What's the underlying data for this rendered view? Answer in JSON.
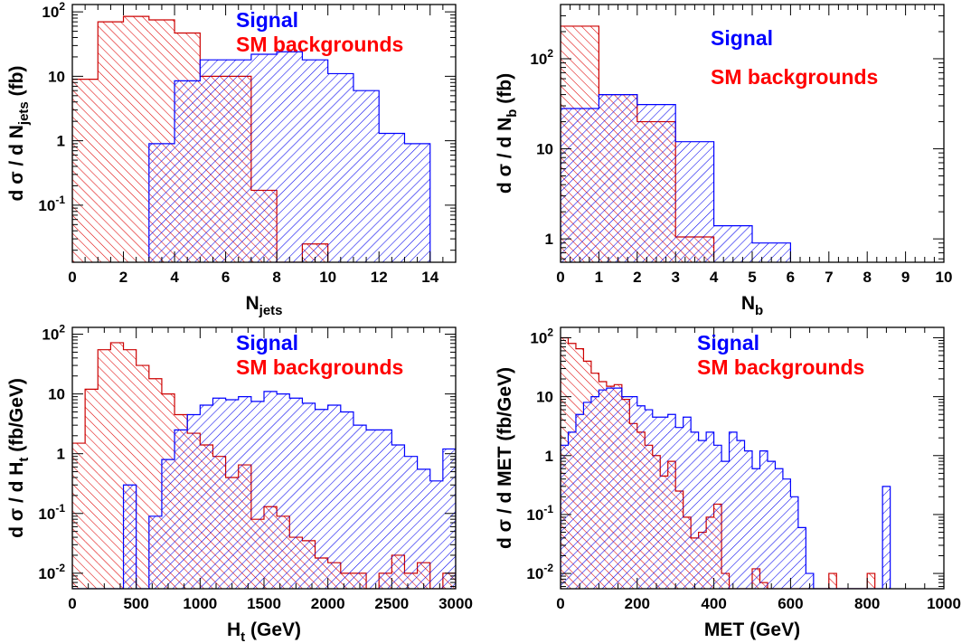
{
  "colors": {
    "signal": "#0000ff",
    "background": "#ff0000",
    "background_stroke": "#cc0000",
    "frame": "#000000",
    "panel_frame": "#000000"
  },
  "chart_data": [
    {
      "type": "bar",
      "histogram": true,
      "ylog": true,
      "xlabel": {
        "main": "N",
        "sub": "jets",
        "tail": ""
      },
      "ylabel": {
        "pre": "d σ / d N",
        "sub": "jets",
        "post": " (fb)"
      },
      "xlim": [
        0,
        15
      ],
      "ylim": [
        0.013,
        130
      ],
      "xticks": [
        0,
        2,
        4,
        6,
        8,
        10,
        12,
        14
      ],
      "xtick_labels": [
        "0",
        "2",
        "4",
        "6",
        "8",
        "10",
        "12",
        "14"
      ],
      "yticks": [
        {
          "value": 100,
          "base": "10",
          "exp": "2"
        },
        {
          "value": 10,
          "base": "10",
          "exp": ""
        },
        {
          "value": 1,
          "base": "1",
          "exp": ""
        },
        {
          "value": 0.1,
          "base": "10",
          "exp": "-1"
        }
      ],
      "legend": {
        "placement": "top-right",
        "signal": "Signal",
        "background": "SM backgrounds"
      },
      "series": [
        {
          "name": "SM backgrounds",
          "key": "background",
          "edges": [
            0,
            1,
            2,
            3,
            4,
            5,
            6,
            7,
            8,
            9,
            10
          ],
          "values": [
            9,
            70,
            85,
            75,
            47,
            10,
            10,
            0.17,
            0,
            0.025
          ]
        },
        {
          "name": "Signal",
          "key": "signal",
          "edges": [
            3,
            4,
            5,
            6,
            7,
            8,
            9,
            10,
            11,
            12,
            13,
            14
          ],
          "values": [
            0.9,
            8.5,
            18,
            18,
            22,
            24,
            18,
            11,
            6,
            1.3,
            0.9
          ]
        }
      ]
    },
    {
      "type": "bar",
      "histogram": true,
      "ylog": true,
      "xlabel": {
        "main": "N",
        "sub": "b",
        "tail": ""
      },
      "ylabel": {
        "pre": "d σ / d N",
        "sub": "b",
        "post": " (fb)"
      },
      "xlim": [
        0,
        10
      ],
      "ylim": [
        0.55,
        400
      ],
      "xticks": [
        0,
        1,
        2,
        3,
        4,
        5,
        6,
        7,
        8,
        9,
        10
      ],
      "xtick_labels": [
        "0",
        "1",
        "2",
        "3",
        "4",
        "5",
        "6",
        "7",
        "8",
        "9",
        "10"
      ],
      "yticks": [
        {
          "value": 100,
          "base": "10",
          "exp": "2"
        },
        {
          "value": 10,
          "base": "10",
          "exp": ""
        },
        {
          "value": 1,
          "base": "1",
          "exp": ""
        }
      ],
      "legend": {
        "placement": "top-right",
        "signal": "Signal",
        "background": "SM backgrounds"
      },
      "series": [
        {
          "name": "SM backgrounds",
          "key": "background",
          "edges": [
            0,
            1,
            2,
            3,
            4
          ],
          "values": [
            230,
            40,
            20,
            1.05
          ]
        },
        {
          "name": "Signal",
          "key": "signal",
          "edges": [
            0,
            1,
            2,
            3,
            4,
            5,
            6
          ],
          "values": [
            28,
            40,
            31,
            12,
            1.4,
            0.9
          ]
        }
      ]
    },
    {
      "type": "bar",
      "histogram": true,
      "ylog": true,
      "xlabel": {
        "main": "H",
        "sub": "t",
        "tail": " (GeV)"
      },
      "ylabel": {
        "pre": "d σ / d H",
        "sub": "t",
        "post": " (fb/GeV)"
      },
      "xlim": [
        0,
        3000
      ],
      "ylim": [
        0.0055,
        130
      ],
      "xticks": [
        0,
        500,
        1000,
        1500,
        2000,
        2500,
        3000
      ],
      "xtick_labels": [
        "0",
        "500",
        "1000",
        "1500",
        "2000",
        "2500",
        "3000"
      ],
      "yticks": [
        {
          "value": 100,
          "base": "10",
          "exp": "2"
        },
        {
          "value": 10,
          "base": "10",
          "exp": ""
        },
        {
          "value": 1,
          "base": "1",
          "exp": ""
        },
        {
          "value": 0.1,
          "base": "10",
          "exp": "-1"
        },
        {
          "value": 0.01,
          "base": "10",
          "exp": "-2"
        }
      ],
      "legend": {
        "placement": "top-right",
        "signal": "Signal",
        "background": "SM backgrounds"
      },
      "series": [
        {
          "name": "SM backgrounds",
          "key": "background",
          "edges": [
            0,
            100,
            200,
            300,
            400,
            500,
            600,
            700,
            800,
            900,
            1000,
            1100,
            1200,
            1300,
            1400,
            1500,
            1600,
            1700,
            1800,
            1900,
            2000,
            2100,
            2200,
            2300,
            2400,
            2500,
            2600,
            2700,
            2800,
            2900,
            3000
          ],
          "values": [
            1.5,
            12,
            55,
            72,
            55,
            30,
            18,
            10,
            4.5,
            2.2,
            1.4,
            0.9,
            0.4,
            0.65,
            0.08,
            0.13,
            0.09,
            0.04,
            0.035,
            0.018,
            0.015,
            0.01,
            0.01,
            0.0,
            0.01,
            0.02,
            0.01,
            0.015,
            0.0,
            0.01
          ]
        },
        {
          "name": "Signal",
          "key": "signal",
          "edges": [
            0,
            100,
            200,
            300,
            400,
            500,
            600,
            700,
            800,
            900,
            1000,
            1100,
            1200,
            1300,
            1400,
            1500,
            1600,
            1700,
            1800,
            1900,
            2000,
            2100,
            2200,
            2300,
            2400,
            2500,
            2600,
            2700,
            2800,
            2900,
            3000
          ],
          "values": [
            0,
            0,
            0,
            0,
            0.3,
            0,
            0.09,
            0.8,
            2.5,
            4.5,
            6.5,
            8.5,
            8,
            9,
            7.5,
            11,
            10,
            8.5,
            7,
            5.5,
            6.5,
            5,
            3,
            2.5,
            2.5,
            1.4,
            0.9,
            0.55,
            0.35,
            1.2
          ]
        }
      ]
    },
    {
      "type": "bar",
      "histogram": true,
      "ylog": true,
      "xlabel": {
        "main": "MET",
        "sub": "",
        "tail": " (GeV)"
      },
      "ylabel": {
        "pre": "d σ / d MET",
        "sub": "",
        "post": " (fb/GeV)"
      },
      "xlim": [
        0,
        1000
      ],
      "ylim": [
        0.0055,
        150
      ],
      "xticks": [
        0,
        200,
        400,
        600,
        800,
        1000
      ],
      "xtick_labels": [
        "0",
        "200",
        "400",
        "600",
        "800",
        "1000"
      ],
      "yticks": [
        {
          "value": 100,
          "base": "10",
          "exp": "2"
        },
        {
          "value": 10,
          "base": "10",
          "exp": ""
        },
        {
          "value": 1,
          "base": "1",
          "exp": ""
        },
        {
          "value": 0.1,
          "base": "10",
          "exp": "-1"
        },
        {
          "value": 0.01,
          "base": "10",
          "exp": "-2"
        }
      ],
      "legend": {
        "placement": "top-right",
        "signal": "Signal",
        "background": "SM backgrounds"
      },
      "series": [
        {
          "name": "SM backgrounds",
          "key": "background",
          "edges": [
            0,
            20,
            40,
            60,
            80,
            100,
            120,
            140,
            160,
            180,
            200,
            220,
            240,
            260,
            280,
            300,
            320,
            340,
            360,
            380,
            400,
            420,
            440,
            460,
            480,
            500,
            520,
            540,
            560,
            580,
            600,
            620,
            640,
            660,
            680,
            700,
            720,
            740,
            760,
            780,
            800,
            820
          ],
          "values": [
            100,
            80,
            65,
            40,
            25,
            18,
            15,
            16,
            9,
            3.5,
            2.5,
            1.5,
            1,
            0.45,
            0.8,
            0.25,
            0.09,
            0.04,
            0.05,
            0.09,
            0.15,
            0.01,
            0.0,
            0.0,
            0.0,
            0.012,
            0.007,
            0.0,
            0.0,
            0.0,
            0.0,
            0.0,
            0.0,
            0.0,
            0.0,
            0.01,
            0.0,
            0.0,
            0.0,
            0.0,
            0.01
          ]
        },
        {
          "name": "Signal",
          "key": "signal",
          "edges": [
            0,
            20,
            40,
            60,
            80,
            100,
            120,
            140,
            160,
            180,
            200,
            220,
            240,
            260,
            280,
            300,
            320,
            340,
            360,
            380,
            400,
            420,
            440,
            460,
            480,
            500,
            520,
            540,
            560,
            580,
            600,
            620,
            640,
            660,
            680,
            700,
            720,
            740,
            760,
            780,
            800,
            820,
            840,
            860
          ],
          "values": [
            1.5,
            2.5,
            5,
            8,
            10,
            13,
            14,
            14,
            10,
            10,
            7,
            6,
            4.5,
            4.5,
            5,
            3,
            4.5,
            2.5,
            1.8,
            2.5,
            1.5,
            0.8,
            2.5,
            1.8,
            1.2,
            0.6,
            1.2,
            0.8,
            0.6,
            0.4,
            0.2,
            0.06,
            0.01,
            0.0,
            0.0,
            0.0,
            0.0,
            0.0,
            0.0,
            0.0,
            0.0,
            0.0,
            0.3
          ]
        }
      ]
    }
  ]
}
